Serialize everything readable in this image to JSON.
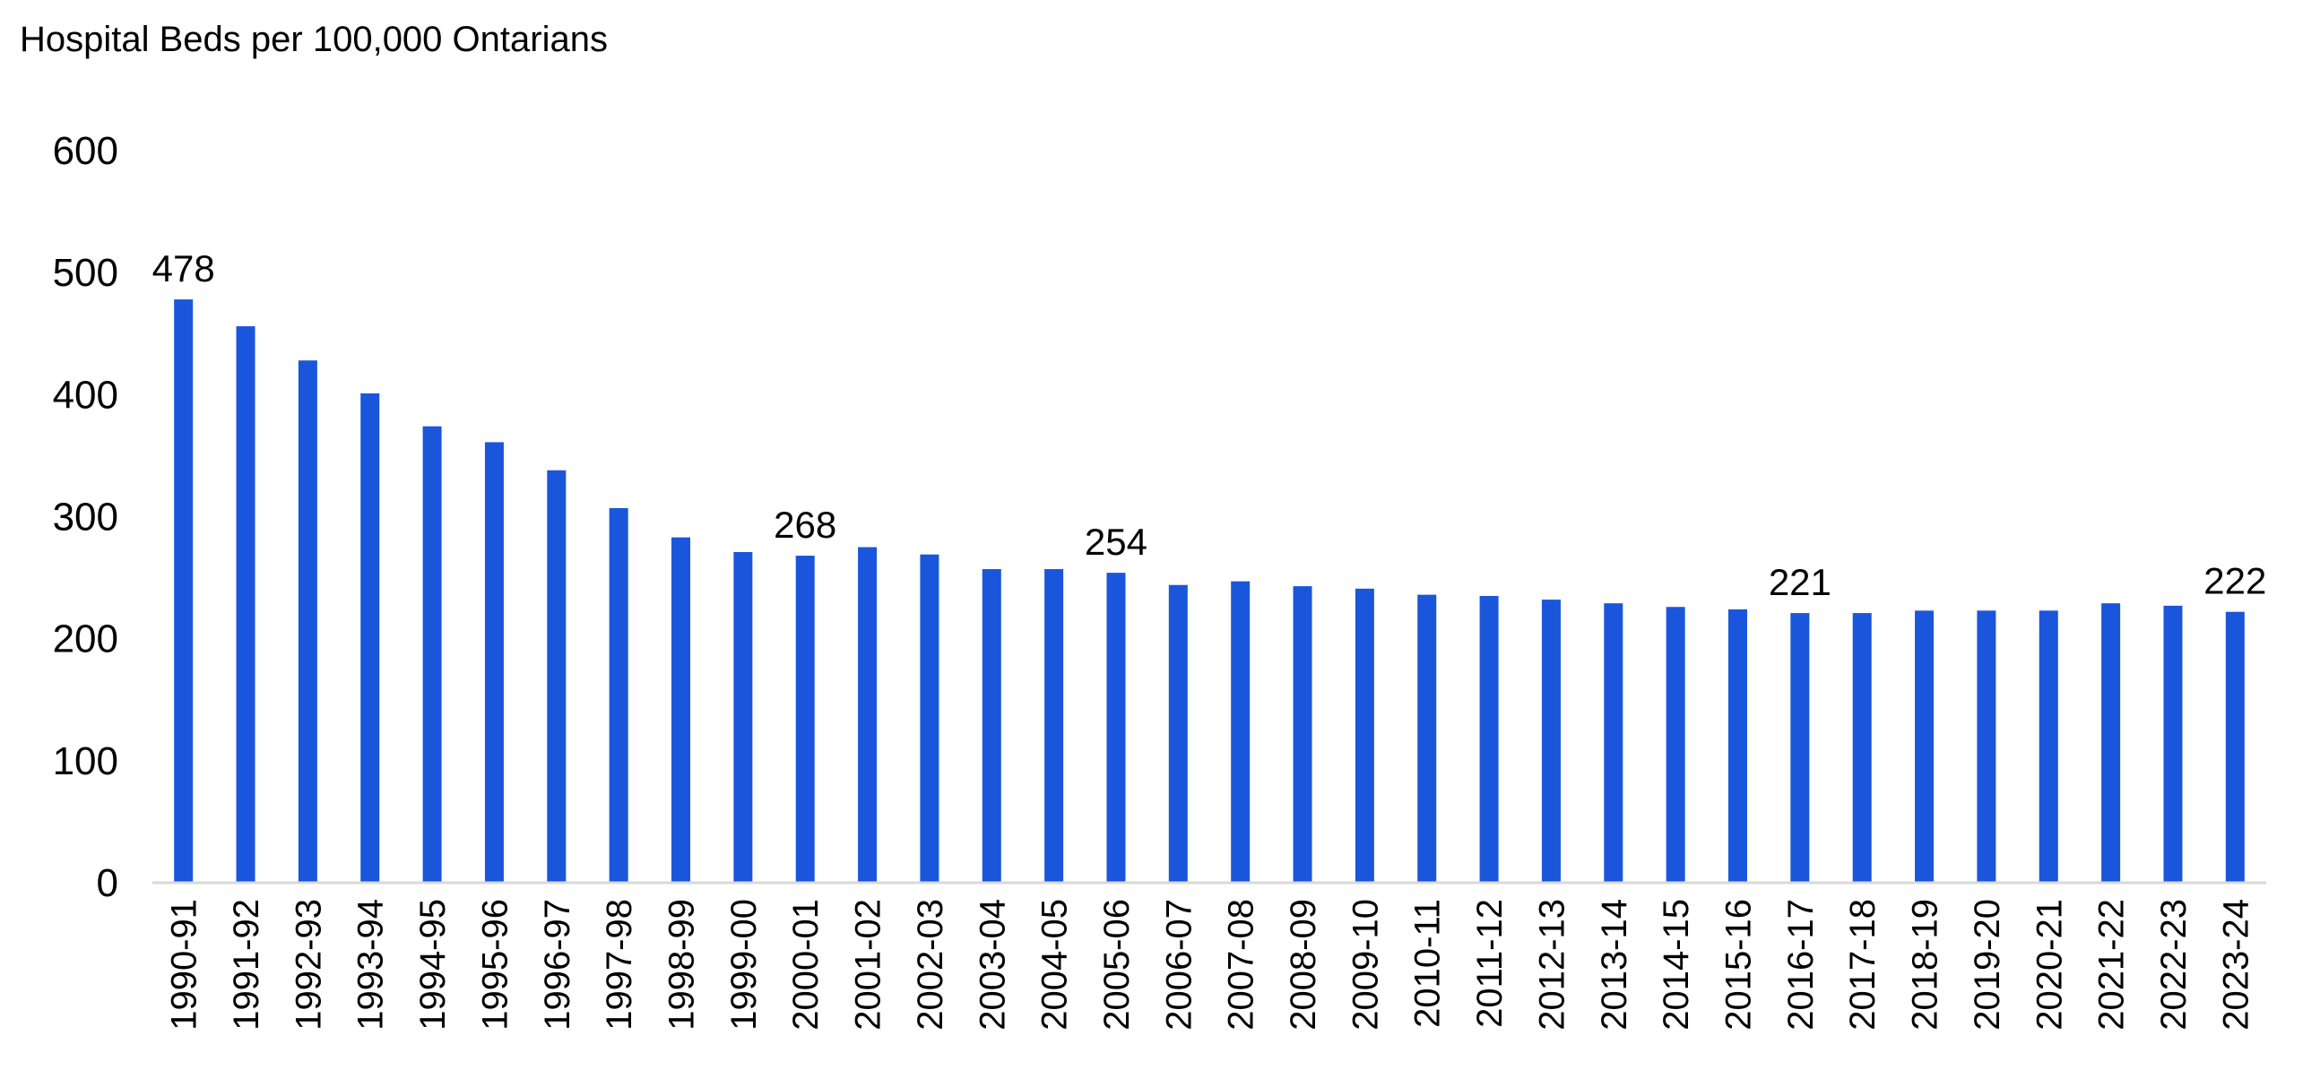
{
  "chart_data": {
    "type": "bar",
    "title": "Hospital Beds per 100,000 Ontarians",
    "xlabel": "",
    "ylabel": "",
    "ylim": [
      0,
      600
    ],
    "yticks": [
      0,
      100,
      200,
      300,
      400,
      500,
      600
    ],
    "grid": false,
    "legend": "none",
    "bar_color": "#1a56db",
    "categories": [
      "1990-91",
      "1991-92",
      "1992-93",
      "1993-94",
      "1994-95",
      "1995-96",
      "1996-97",
      "1997-98",
      "1998-99",
      "1999-00",
      "2000-01",
      "2001-02",
      "2002-03",
      "2003-04",
      "2004-05",
      "2005-06",
      "2006-07",
      "2007-08",
      "2008-09",
      "2009-10",
      "2010-11",
      "2011-12",
      "2012-13",
      "2013-14",
      "2014-15",
      "2015-16",
      "2016-17",
      "2017-18",
      "2018-19",
      "2019-20",
      "2020-21",
      "2021-22",
      "2022-23",
      "2023-24"
    ],
    "values": [
      478,
      456,
      428,
      401,
      374,
      361,
      338,
      307,
      283,
      271,
      268,
      275,
      269,
      257,
      257,
      254,
      244,
      247,
      243,
      241,
      236,
      235,
      232,
      229,
      226,
      224,
      221,
      221,
      223,
      223,
      223,
      229,
      227,
      222
    ],
    "data_labels": [
      {
        "category": "1990-91",
        "text": "478"
      },
      {
        "category": "2000-01",
        "text": "268"
      },
      {
        "category": "2005-06",
        "text": "254"
      },
      {
        "category": "2016-17",
        "text": "221"
      },
      {
        "category": "2023-24",
        "text": "222"
      }
    ]
  }
}
